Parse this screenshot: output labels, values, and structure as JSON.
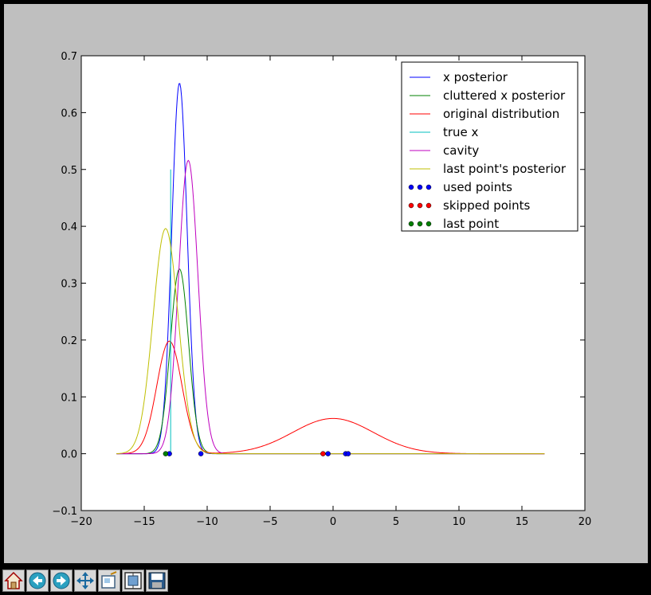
{
  "window": {
    "background": "#000000"
  },
  "figure": {
    "background": "#bfbfbf"
  },
  "toolbar": {
    "buttons": [
      {
        "name": "home-button",
        "icon": "home-icon"
      },
      {
        "name": "back-button",
        "icon": "arrow-left-icon"
      },
      {
        "name": "forward-button",
        "icon": "arrow-right-icon"
      },
      {
        "name": "pan-button",
        "icon": "move-arrows-icon"
      },
      {
        "name": "zoom-button",
        "icon": "zoom-rect-icon"
      },
      {
        "name": "subplots-button",
        "icon": "subplots-icon"
      },
      {
        "name": "save-button",
        "icon": "floppy-disk-icon"
      }
    ]
  },
  "chart_data": {
    "type": "line",
    "title": "",
    "xlabel": "",
    "ylabel": "",
    "xlim": [
      -20,
      20
    ],
    "ylim": [
      -0.1,
      0.7
    ],
    "xticks": [
      -20,
      -15,
      -10,
      -5,
      0,
      5,
      10,
      15,
      20
    ],
    "xtick_labels": [
      "−20",
      "−15",
      "−10",
      "−5",
      "0",
      "5",
      "10",
      "15",
      "20"
    ],
    "yticks": [
      -0.1,
      0.0,
      0.1,
      0.2,
      0.3,
      0.4,
      0.5,
      0.6,
      0.7
    ],
    "ytick_labels": [
      "−0.1",
      "0.0",
      "0.1",
      "0.2",
      "0.3",
      "0.4",
      "0.5",
      "0.6",
      "0.7"
    ],
    "grid": false,
    "legend_position": "top-right",
    "x_range": [
      -17.2,
      16.8
    ],
    "series": [
      {
        "name": "x posterior",
        "kind": "gaussian",
        "mean": -12.2,
        "sd": 0.61,
        "peak": 0.652,
        "color": "#0000ff"
      },
      {
        "name": "cluttered x posterior",
        "kind": "gaussian",
        "mean": -12.2,
        "sd": 0.72,
        "peak": 0.325,
        "color": "#008000"
      },
      {
        "name": "original distribution",
        "kind": "gaussian_mixture",
        "components": [
          {
            "mean": -13.0,
            "sd": 1.0,
            "peak": 0.198
          },
          {
            "mean": 0.0,
            "sd": 3.2,
            "peak": 0.062
          }
        ],
        "color": "#ff0000"
      },
      {
        "name": "true x",
        "kind": "vertical_line",
        "x": -12.9,
        "y_from": 0.0,
        "y_to": 0.5,
        "color": "#00bfbf"
      },
      {
        "name": "cavity",
        "kind": "gaussian",
        "mean": -11.5,
        "sd": 0.77,
        "peak": 0.516,
        "color": "#bf00bf"
      },
      {
        "name": "last point's posterior",
        "kind": "gaussian",
        "mean": -13.3,
        "sd": 1.0,
        "peak": 0.396,
        "color": "#bfbf00"
      },
      {
        "name": "used points",
        "kind": "scatter",
        "x": [
          -13.0,
          -10.5,
          -0.4,
          1.0,
          1.2
        ],
        "y": [
          0,
          0,
          0,
          0,
          0
        ],
        "color": "#0000ff"
      },
      {
        "name": "skipped points",
        "kind": "scatter",
        "x": [
          -0.8
        ],
        "y": [
          0
        ],
        "color": "#ff0000"
      },
      {
        "name": "last point",
        "kind": "scatter",
        "x": [
          -13.3
        ],
        "y": [
          0
        ],
        "color": "#008000"
      }
    ]
  }
}
